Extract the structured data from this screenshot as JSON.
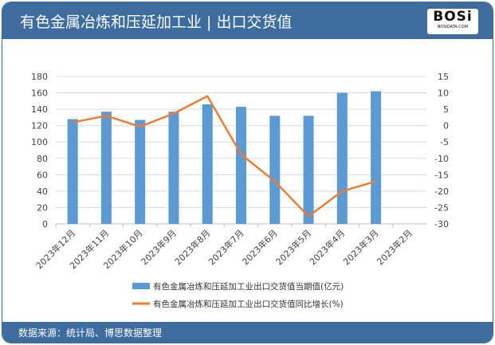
{
  "header": {
    "title": "有色金属冶炼和压延加工业 | 出口交货值",
    "logo_text": "BOSi",
    "logo_sub": "BOSIDATA.COM"
  },
  "footer": {
    "source": "数据来源：统计局、博思数据整理"
  },
  "colors": {
    "header": "#3d6c9e",
    "bar": "#5b9bd5",
    "line": "#ed7d31"
  },
  "chart_data": {
    "type": "bar+line",
    "categories": [
      "2023年12月",
      "2023年11月",
      "2023年10月",
      "2023年9月",
      "2023年8月",
      "2023年7月",
      "2023年6月",
      "2023年5月",
      "2023年4月",
      "2023年3月",
      "2023年2月"
    ],
    "series": [
      {
        "name": "有色金属冶炼和压延加工业出口交货值当期值(亿元)",
        "type": "bar",
        "axis": "left",
        "values": [
          128,
          137,
          127,
          137,
          146,
          143,
          132,
          132,
          160,
          162,
          null
        ]
      },
      {
        "name": "有色金属冶炼和压延加工业出口交货值同比增长(%)",
        "type": "line",
        "axis": "right",
        "values": [
          1,
          3,
          -0.3,
          3.7,
          9,
          -8.8,
          -17,
          -27.7,
          -20,
          -17,
          null
        ]
      }
    ],
    "left_axis": {
      "range": [
        0,
        180
      ],
      "ticks": [
        "0",
        "20",
        "40",
        "60",
        "80",
        "100",
        "120",
        "140",
        "160",
        "180"
      ]
    },
    "right_axis": {
      "range": [
        -30,
        15
      ],
      "ticks": [
        "-30",
        "-25",
        "-20",
        "-15",
        "-10",
        "-5",
        "0",
        "5",
        "10",
        "15"
      ]
    },
    "grid": true,
    "legend": "bottom"
  }
}
